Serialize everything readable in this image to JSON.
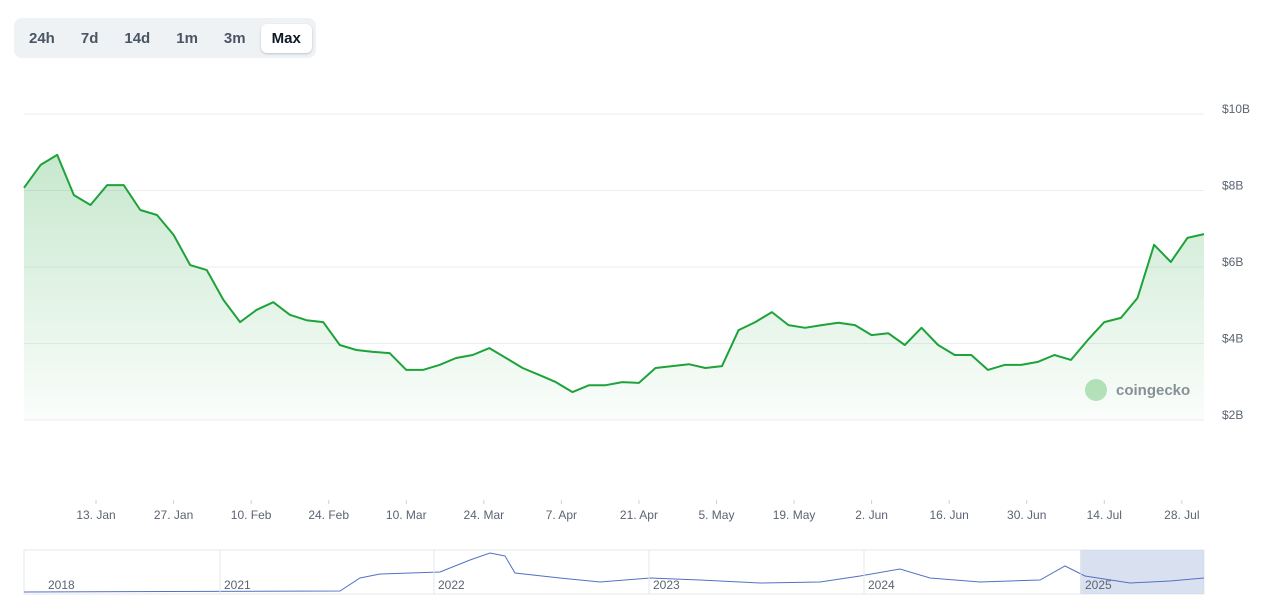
{
  "range_buttons": [
    "24h",
    "7d",
    "14d",
    "1m",
    "3m",
    "Max"
  ],
  "selected_range": "Max",
  "watermark": "coingecko",
  "navigator": {
    "labels": [
      "2018",
      "2021",
      "2022",
      "2023",
      "2024",
      "2025"
    ]
  },
  "chart_data": {
    "type": "line",
    "color": "#1ea23a",
    "grid": true,
    "x": [
      -1,
      2,
      5,
      8,
      11,
      14,
      17,
      20,
      23,
      26,
      29,
      32,
      35,
      38,
      41,
      44,
      47,
      50,
      53,
      56,
      59,
      62,
      65,
      68,
      71,
      74,
      77,
      80,
      83,
      86,
      89,
      92,
      95,
      98,
      101,
      104,
      107,
      110,
      113,
      116,
      119,
      122,
      125,
      128,
      131,
      134,
      137,
      140,
      143,
      146,
      149,
      152,
      155,
      158,
      161,
      164,
      167,
      170,
      173,
      176,
      179,
      182,
      185,
      188,
      191,
      194,
      197,
      200,
      203,
      206,
      209,
      212
    ],
    "values": [
      8.07,
      8.67,
      8.93,
      7.88,
      7.62,
      8.14,
      8.14,
      7.49,
      7.36,
      6.84,
      6.05,
      5.92,
      5.14,
      4.56,
      4.88,
      5.08,
      4.75,
      4.61,
      4.56,
      3.96,
      3.83,
      3.78,
      3.75,
      3.31,
      3.31,
      3.44,
      3.62,
      3.7,
      3.88,
      3.62,
      3.36,
      3.18,
      2.99,
      2.73,
      2.91,
      2.91,
      2.99,
      2.97,
      3.36,
      3.41,
      3.46,
      3.36,
      3.41,
      4.35,
      4.56,
      4.82,
      4.48,
      4.41,
      4.48,
      4.54,
      4.48,
      4.22,
      4.27,
      3.96,
      4.41,
      3.96,
      3.7,
      3.7,
      3.31,
      3.44,
      3.44,
      3.52,
      3.7,
      3.57,
      4.09,
      4.56,
      4.67,
      5.19,
      6.58,
      6.13,
      6.76,
      6.86
    ],
    "xlim": [
      -1,
      212
    ],
    "xticks": [
      {
        "value": 12,
        "label": "13. Jan"
      },
      {
        "value": 26,
        "label": "27. Jan"
      },
      {
        "value": 40,
        "label": "10. Feb"
      },
      {
        "value": 54,
        "label": "24. Feb"
      },
      {
        "value": 68,
        "label": "10. Mar"
      },
      {
        "value": 82,
        "label": "24. Mar"
      },
      {
        "value": 96,
        "label": "7. Apr"
      },
      {
        "value": 110,
        "label": "21. Apr"
      },
      {
        "value": 124,
        "label": "5. May"
      },
      {
        "value": 138,
        "label": "19. May"
      },
      {
        "value": 152,
        "label": "2. Jun"
      },
      {
        "value": 166,
        "label": "16. Jun"
      },
      {
        "value": 180,
        "label": "30. Jun"
      },
      {
        "value": 194,
        "label": "14. Jul"
      },
      {
        "value": 208,
        "label": "28. Jul"
      }
    ],
    "ylim": [
      2,
      10
    ],
    "yticks": [
      {
        "value": 2,
        "label": "$2B"
      },
      {
        "value": 4,
        "label": "$4B"
      },
      {
        "value": 6,
        "label": "$6B"
      },
      {
        "value": 8,
        "label": "$8B"
      },
      {
        "value": 10,
        "label": "$10B"
      }
    ]
  }
}
